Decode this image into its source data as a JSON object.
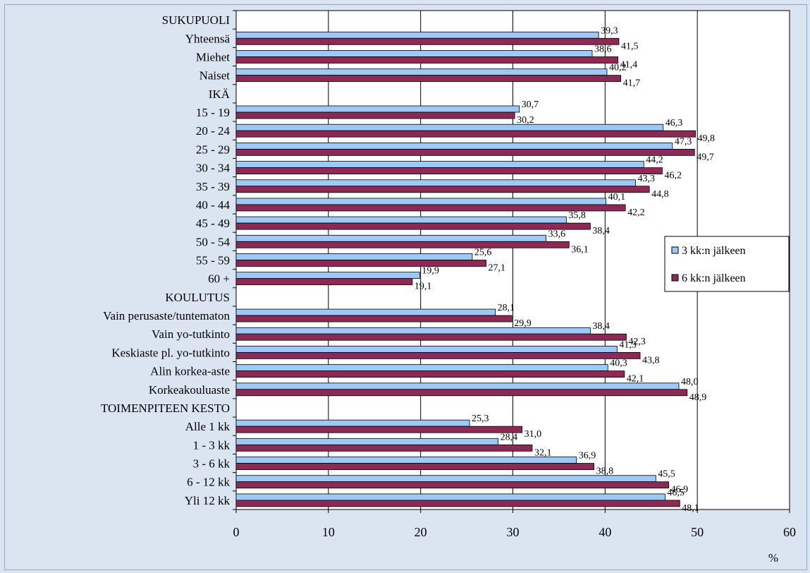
{
  "colors": {
    "series_1": "#9ec8f5",
    "series_2": "#8c2a55",
    "plot_background": "#ffffff",
    "page_background": "#dbe5f1"
  },
  "axis": {
    "unit": "%"
  },
  "chart_data": {
    "type": "bar",
    "orientation": "horizontal",
    "xlabel": "%",
    "ylabel": "",
    "xlim": [
      0,
      60
    ],
    "x_ticks": [
      0,
      10,
      20,
      30,
      40,
      50,
      60
    ],
    "grid": true,
    "legend_position": "right",
    "categories": [
      "SUKUPUOLI",
      "Yhteensä",
      "Miehet",
      "Naiset",
      "IKÄ",
      "15 - 19",
      "20 - 24",
      "25 - 29",
      "30 - 34",
      "35 - 39",
      "40 - 44",
      "45 - 49",
      "50 - 54",
      "55 - 59",
      "60 +",
      "KOULUTUS",
      "Vain perusaste/tuntematon",
      "Vain yo-tutkinto",
      "Keskiaste pl. yo-tutkinto",
      "Alin korkea-aste",
      "Korkeakouluaste",
      "TOIMENPITEEN KESTO",
      "Alle 1 kk",
      "1 - 3 kk",
      "3 - 6 kk",
      "6 - 12 kk",
      "Yli 12 kk"
    ],
    "series": [
      {
        "name": "3 kk:n jälkeen",
        "values": [
          null,
          39.3,
          38.6,
          40.2,
          null,
          30.7,
          46.3,
          47.3,
          44.2,
          43.3,
          40.1,
          35.8,
          33.6,
          25.6,
          19.9,
          null,
          28.1,
          38.4,
          41.3,
          40.3,
          48.0,
          null,
          25.3,
          28.4,
          36.9,
          45.5,
          46.5
        ],
        "labels": [
          "",
          "39,3",
          "38,6",
          "40,2",
          "",
          "30,7",
          "46,3",
          "47,3",
          "44,2",
          "43,3",
          "40,1",
          "35,8",
          "33,6",
          "25,6",
          "19,9",
          "",
          "28,1",
          "38,4",
          "41,3",
          "40,3",
          "48,0",
          "",
          "25,3",
          "28,4",
          "36,9",
          "45,5",
          "46,5"
        ]
      },
      {
        "name": "6 kk:n jälkeen",
        "values": [
          null,
          41.5,
          41.4,
          41.7,
          null,
          30.2,
          49.8,
          49.7,
          46.2,
          44.8,
          42.2,
          38.4,
          36.1,
          27.1,
          19.1,
          null,
          29.9,
          42.3,
          43.8,
          42.1,
          48.9,
          null,
          31.0,
          32.1,
          38.8,
          46.9,
          48.1
        ],
        "labels": [
          "",
          "41,5",
          "41,4",
          "41,7",
          "",
          "30,2",
          "49,8",
          "49,7",
          "46,2",
          "44,8",
          "42,2",
          "38,4",
          "36,1",
          "27,1",
          "19,1",
          "",
          "29,9",
          "42,3",
          "43,8",
          "42,1",
          "48,9",
          "",
          "31,0",
          "32,1",
          "38,8",
          "46,9",
          "48,1"
        ]
      }
    ]
  }
}
